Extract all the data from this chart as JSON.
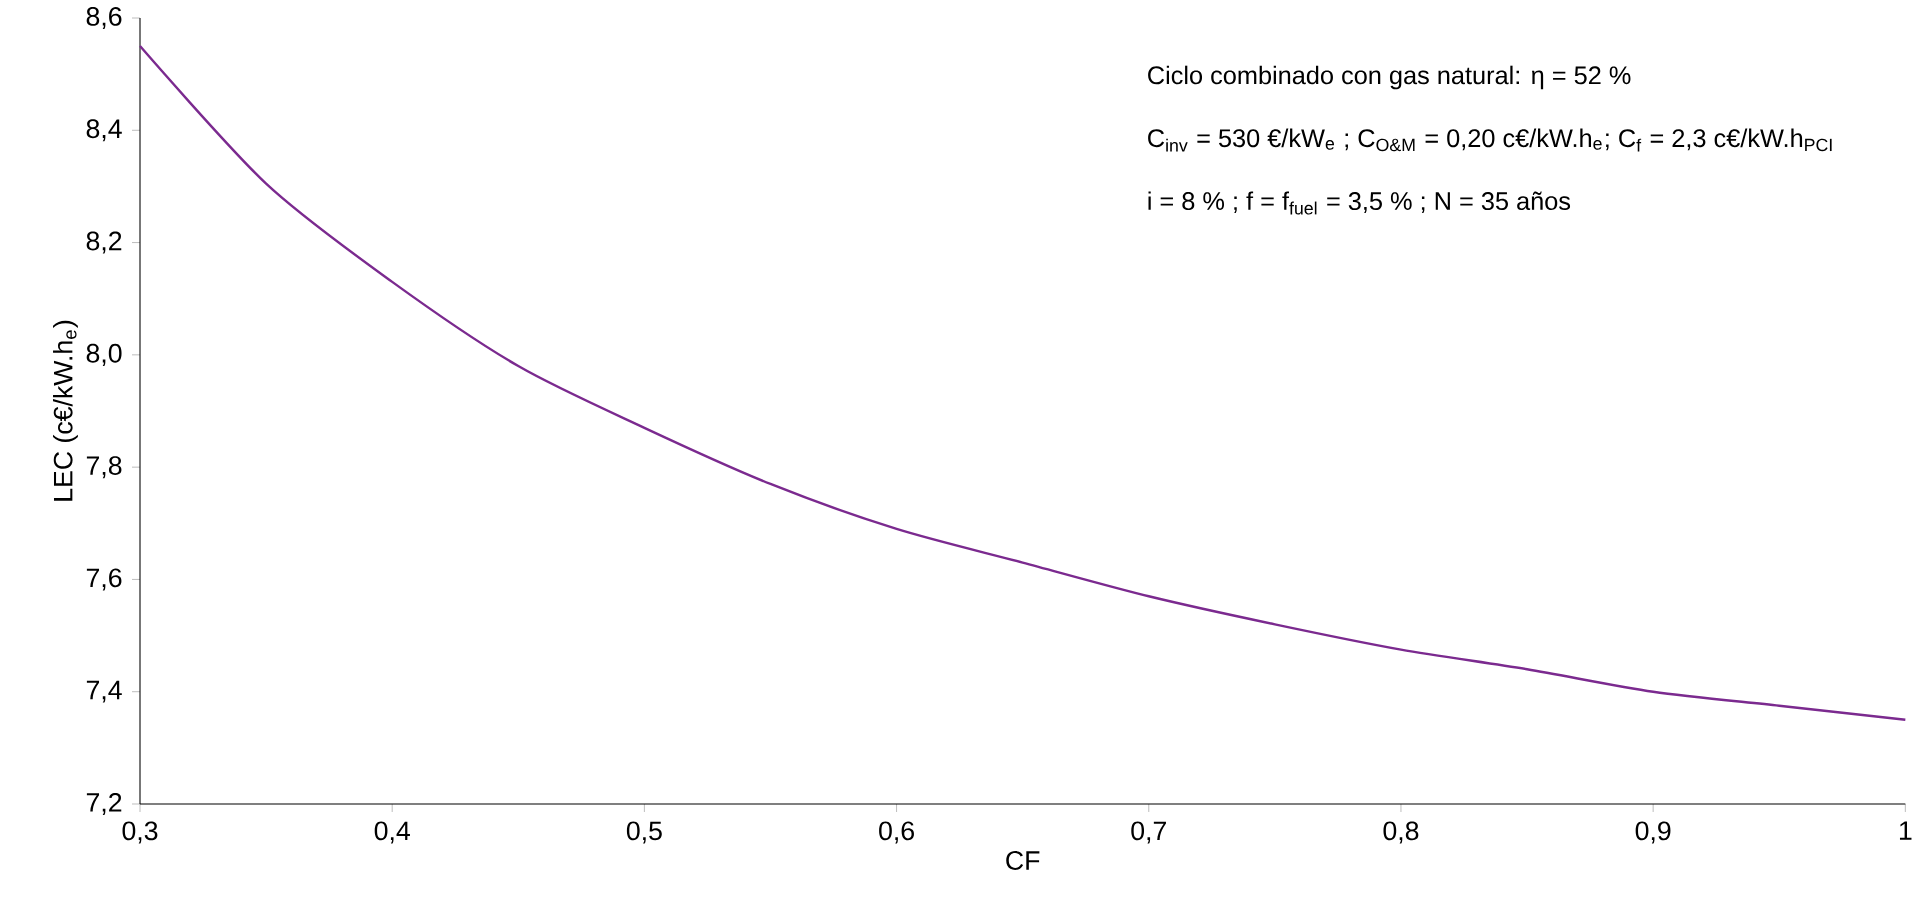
{
  "chart_data": {
    "type": "line",
    "xlabel": "CF",
    "ylabel": "LEC (c€/kW.h$_{e}$)",
    "annotations": [
      "Ciclo combinado con gas natural: η = 52 %",
      "C$_{inv}$ = 530 €/kW$_{e}$ ; C$_{O&M}$ = 0,20 c€/kW.h$_{e}$; C$_{f}$ = 2,3 c€/kW.h$_{PCI}$",
      "i  = 8 % ; f = f$_{fuel}$ = 3,5 % ; N = 35 años"
    ],
    "x": [
      0.3,
      0.35,
      0.4,
      0.45,
      0.5,
      0.55,
      0.6,
      0.65,
      0.7,
      0.75,
      0.8,
      0.85,
      0.9,
      0.95,
      1.0
    ],
    "series": [
      {
        "color": "#7b2a8f",
        "values": [
          8.55,
          8.305,
          8.13,
          7.98,
          7.87,
          7.77,
          7.69,
          7.63,
          7.57,
          7.52,
          7.475,
          7.44,
          7.4,
          7.375,
          7.35
        ]
      }
    ],
    "xlim": [
      0.3,
      1
    ],
    "ylim": [
      7.2,
      8.6
    ],
    "xticks": [
      {
        "value": 0.3,
        "label": "0,3"
      },
      {
        "value": 0.4,
        "label": "0,4"
      },
      {
        "value": 0.5,
        "label": "0,5"
      },
      {
        "value": 0.6,
        "label": "0,6"
      },
      {
        "value": 0.7,
        "label": "0,7"
      },
      {
        "value": 0.8,
        "label": "0,8"
      },
      {
        "value": 0.9,
        "label": "0,9"
      },
      1
    ],
    "yticks": [
      {
        "value": 7.2,
        "label": "7,2"
      },
      {
        "value": 7.4,
        "label": "7,4"
      },
      {
        "value": 7.6,
        "label": "7,6"
      },
      {
        "value": 7.8,
        "label": "7,8"
      },
      {
        "value": 8.0,
        "label": "8,0"
      },
      {
        "value": 8.2,
        "label": "8,2"
      },
      {
        "value": 8.4,
        "label": "8,4"
      },
      {
        "value": 8.6,
        "label": "8,6"
      }
    ],
    "grid": false,
    "marker": "none",
    "line_style": "solid"
  }
}
